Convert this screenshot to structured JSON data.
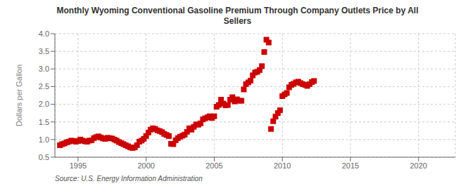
{
  "chart_data": {
    "type": "scatter",
    "title": "Monthly Wyoming Conventional Gasoline Premium Through Company Outlets Price by All\nSellers",
    "ylabel": "Dollars per Gallon",
    "annotations": [
      "Source: U.S. Energy Information Administration"
    ],
    "color": "#cc0000",
    "marker": "square",
    "grid": true,
    "xlim": [
      1993.3,
      2022.7
    ],
    "xticks": [
      1995,
      2000,
      2005,
      2010,
      2015,
      2020
    ],
    "ylim": [
      0.5,
      4.0
    ],
    "yticks": [
      0.5,
      {
        "value": 1.0,
        "label": "1.0"
      },
      1.5,
      {
        "value": 2.0,
        "label": "2.0"
      },
      2.5,
      {
        "value": 3.0,
        "label": "3.0"
      },
      3.5,
      {
        "value": 4.0,
        "label": "4.0"
      }
    ],
    "x": [
      1993.67,
      1993.83,
      1994.0,
      1994.17,
      1994.33,
      1994.5,
      1994.67,
      1994.83,
      1995.0,
      1995.17,
      1995.33,
      1995.5,
      1995.67,
      1995.83,
      1996.0,
      1996.17,
      1996.33,
      1996.5,
      1996.67,
      1996.83,
      1997.0,
      1997.17,
      1997.33,
      1997.5,
      1997.67,
      1997.83,
      1998.0,
      1998.17,
      1998.33,
      1998.5,
      1998.67,
      1998.83,
      1999.0,
      1999.17,
      1999.33,
      1999.5,
      1999.67,
      1999.83,
      2000.0,
      2000.17,
      2000.33,
      2000.5,
      2000.67,
      2000.83,
      2001.0,
      2001.17,
      2001.33,
      2001.5,
      2001.67,
      2001.83,
      2002.0,
      2002.17,
      2002.33,
      2002.5,
      2002.67,
      2002.83,
      2003.0,
      2003.17,
      2003.33,
      2003.5,
      2003.67,
      2003.83,
      2004.0,
      2004.17,
      2004.33,
      2004.5,
      2004.67,
      2004.83,
      2005.0,
      2005.17,
      2005.33,
      2005.5,
      2005.67,
      2005.83,
      2006.0,
      2006.17,
      2006.33,
      2006.5,
      2006.67,
      2006.83,
      2007.0,
      2007.17,
      2007.33,
      2007.5,
      2007.67,
      2007.83,
      2008.0,
      2008.17,
      2008.33,
      2008.5,
      2008.67,
      2008.83,
      2009.0,
      2009.17,
      2009.33,
      2009.5,
      2009.67,
      2009.83,
      2010.0,
      2010.17,
      2010.33,
      2010.5,
      2010.67,
      2010.83,
      2011.0,
      2011.17,
      2011.33,
      2011.5,
      2011.67,
      2011.83,
      2012.0,
      2012.17,
      2012.33
    ],
    "values": [
      0.84,
      0.87,
      0.89,
      0.92,
      0.94,
      0.97,
      0.96,
      0.94,
      0.96,
      1.0,
      0.97,
      0.95,
      0.94,
      0.97,
      0.98,
      1.04,
      1.07,
      1.09,
      1.06,
      1.03,
      1.02,
      1.05,
      1.04,
      1.03,
      1.0,
      0.97,
      0.93,
      0.9,
      0.87,
      0.84,
      0.81,
      0.78,
      0.76,
      0.78,
      0.84,
      0.94,
      0.97,
      1.02,
      1.1,
      1.2,
      1.28,
      1.32,
      1.3,
      1.26,
      1.24,
      1.21,
      1.16,
      1.13,
      1.1,
      0.88,
      0.87,
      0.98,
      1.04,
      1.08,
      1.11,
      1.14,
      1.22,
      1.32,
      1.28,
      1.36,
      1.43,
      1.42,
      1.46,
      1.57,
      1.6,
      1.63,
      1.66,
      1.61,
      1.66,
      1.93,
      1.98,
      2.13,
      2.02,
      1.97,
      1.98,
      2.13,
      2.2,
      2.08,
      2.14,
      2.1,
      2.1,
      2.42,
      2.57,
      2.62,
      2.67,
      2.82,
      2.9,
      2.92,
      2.97,
      3.08,
      3.48,
      3.83,
      3.75,
      1.3,
      1.52,
      1.65,
      1.75,
      1.83,
      2.23,
      2.28,
      2.32,
      2.48,
      2.55,
      2.58,
      2.62,
      2.64,
      2.6,
      2.57,
      2.55,
      2.52,
      2.57,
      2.63,
      2.66
    ]
  }
}
